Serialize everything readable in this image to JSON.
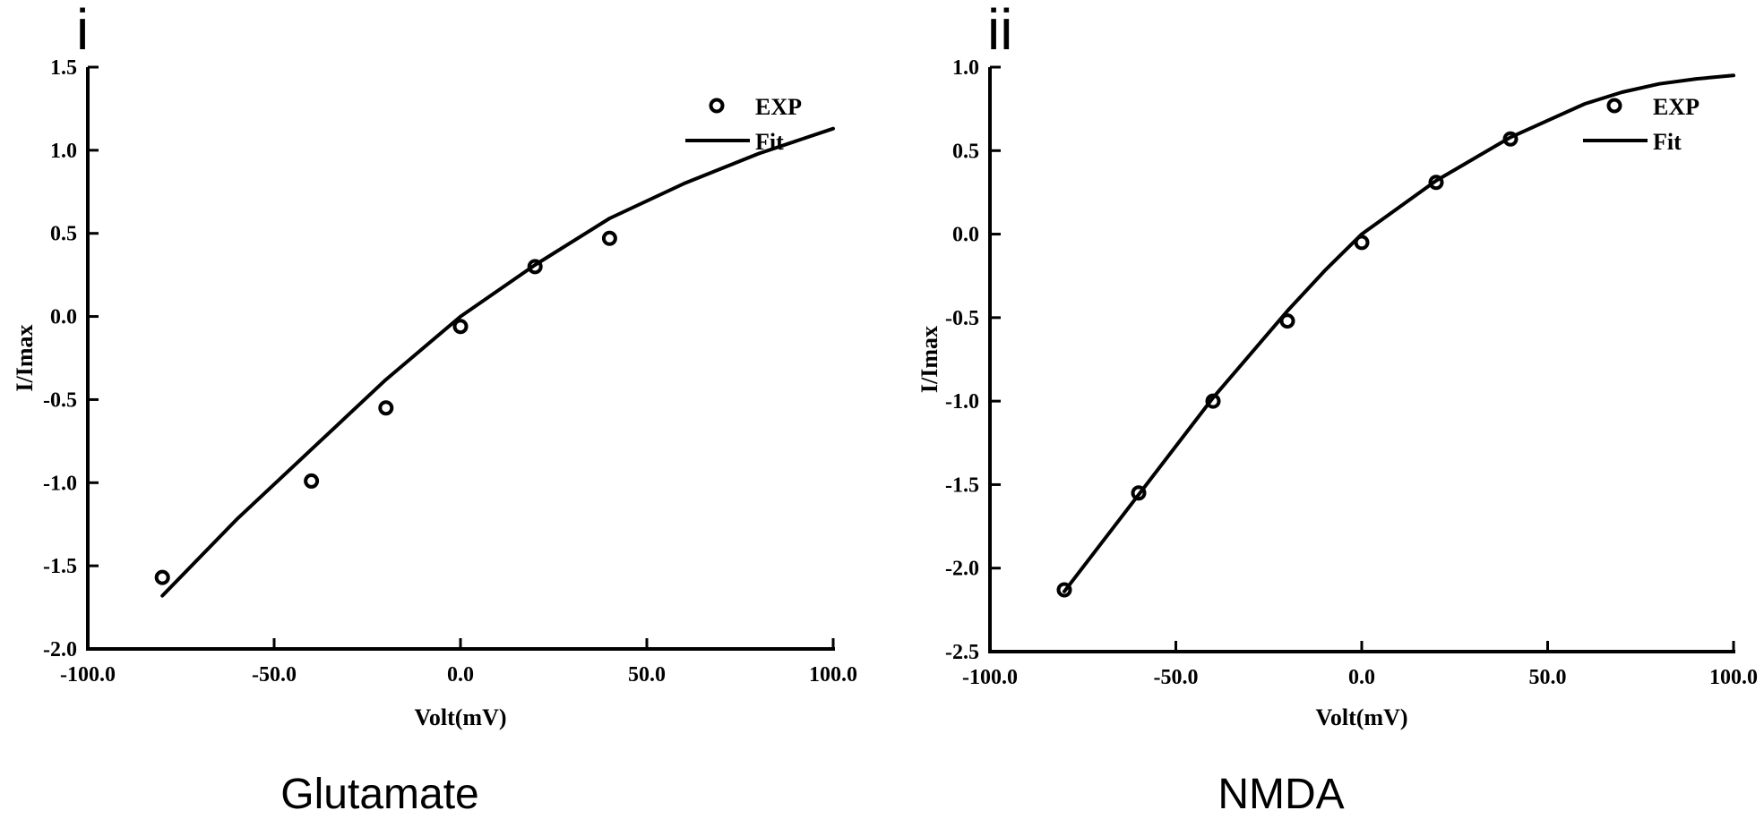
{
  "chart_data": [
    {
      "type": "scatter",
      "panel_label": "i",
      "caption": "Glutamate",
      "xlabel": "Volt(mV)",
      "ylabel": "I/Imax",
      "xlim": [
        -100,
        100
      ],
      "ylim": [
        -2.0,
        1.5
      ],
      "xticks": [
        -100,
        -50,
        0,
        50,
        100
      ],
      "xtick_labels": [
        "-100.0",
        "-50.0",
        "0.0",
        "50.0",
        "100.0"
      ],
      "yticks": [
        -2.0,
        -1.5,
        -1.0,
        -0.5,
        0.0,
        0.5,
        1.0,
        1.5
      ],
      "ytick_labels": [
        "-2.0",
        "-1.5",
        "-1.0",
        "-0.5",
        "0.0",
        "0.5",
        "1.0",
        "1.5"
      ],
      "grid": false,
      "legend_position": "top-right",
      "series": [
        {
          "name": "EXP",
          "style": "open-circle",
          "x": [
            -80,
            -40,
            -20,
            0,
            20,
            40
          ],
          "y": [
            -1.57,
            -0.99,
            -0.55,
            -0.06,
            0.3,
            0.47
          ]
        },
        {
          "name": "Fit",
          "style": "line",
          "x": [
            -80,
            -60,
            -40,
            -20,
            0,
            20,
            40,
            60,
            80,
            100
          ],
          "y": [
            -1.68,
            -1.22,
            -0.8,
            -0.38,
            0.0,
            0.31,
            0.59,
            0.8,
            0.98,
            1.13
          ]
        }
      ]
    },
    {
      "type": "scatter",
      "panel_label": "ii",
      "caption": "NMDA",
      "xlabel": "Volt(mV)",
      "ylabel": "I/Imax",
      "xlim": [
        -100,
        100
      ],
      "ylim": [
        -2.5,
        1.0
      ],
      "xticks": [
        -100,
        -50,
        0,
        50,
        100
      ],
      "xtick_labels": [
        "-100.0",
        "-50.0",
        "0.0",
        "50.0",
        "100.0"
      ],
      "yticks": [
        -2.5,
        -2.0,
        -1.5,
        -1.0,
        -0.5,
        0.0,
        0.5,
        1.0
      ],
      "ytick_labels": [
        "-2.5",
        "-2.0",
        "-1.5",
        "-1.0",
        "-0.5",
        "0.0",
        "0.5",
        "1.0"
      ],
      "grid": false,
      "legend_position": "top-right",
      "series": [
        {
          "name": "EXP",
          "style": "open-circle",
          "x": [
            -80,
            -60,
            -40,
            -20,
            0,
            20,
            40
          ],
          "y": [
            -2.13,
            -1.55,
            -1.0,
            -0.52,
            -0.05,
            0.31,
            0.57
          ]
        },
        {
          "name": "Fit",
          "style": "line",
          "x": [
            -80,
            -70,
            -60,
            -50,
            -40,
            -30,
            -20,
            -10,
            0,
            10,
            20,
            30,
            40,
            50,
            60,
            70,
            80,
            90,
            100
          ],
          "y": [
            -2.14,
            -1.85,
            -1.56,
            -1.27,
            -0.98,
            -0.72,
            -0.46,
            -0.22,
            0.0,
            0.16,
            0.32,
            0.45,
            0.58,
            0.68,
            0.78,
            0.85,
            0.9,
            0.93,
            0.95
          ]
        }
      ]
    }
  ]
}
